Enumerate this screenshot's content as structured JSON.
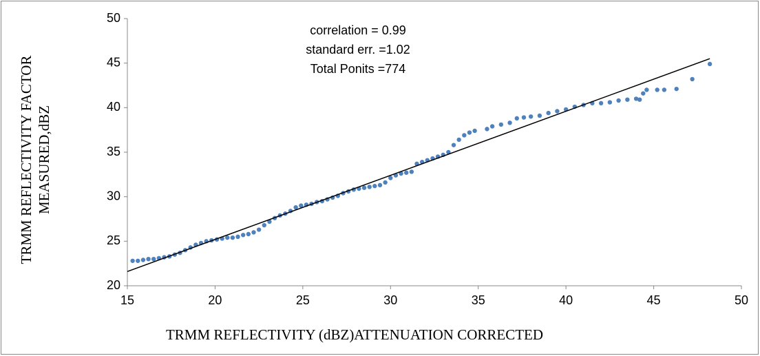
{
  "chart_data": {
    "type": "scatter",
    "annotations": [
      "correlation = 0.99",
      "standard err. =1.02",
      "Total Ponits =774"
    ],
    "xlabel": "TRMM  REFLECTIVITY (dBZ)ATTENUATION CORRECTED",
    "ylabel": [
      "TRMM REFLECTIVITY FACTOR",
      "MEASURED,dBZ"
    ],
    "xlim": [
      15,
      50
    ],
    "xticks": [
      15,
      20,
      25,
      30,
      35,
      40,
      45,
      50
    ],
    "ylim": [
      20,
      50
    ],
    "yticks": [
      20,
      25,
      30,
      35,
      40,
      45,
      50
    ],
    "series": [
      {
        "color": "#4f81bd",
        "x": [
          15.3,
          15.6,
          15.9,
          16.2,
          16.5,
          16.8,
          17.1,
          17.4,
          17.7,
          18.0,
          18.3,
          18.6,
          18.9,
          19.2,
          19.5,
          19.8,
          20.1,
          20.4,
          20.7,
          21.0,
          21.3,
          21.6,
          21.9,
          22.2,
          22.5,
          22.8,
          23.1,
          23.4,
          23.7,
          24.0,
          24.3,
          24.6,
          24.9,
          25.2,
          25.5,
          25.8,
          26.1,
          26.4,
          26.7,
          27.0,
          27.3,
          27.6,
          27.9,
          28.2,
          28.5,
          28.8,
          29.1,
          29.4,
          29.7,
          30.0,
          30.3,
          30.6,
          30.9,
          31.2,
          31.5,
          31.8,
          32.1,
          32.4,
          32.7,
          33.0,
          33.3,
          33.6,
          33.9,
          34.2,
          34.5,
          34.8,
          35.5,
          35.8,
          36.3,
          36.8,
          37.2,
          37.6,
          38.0,
          38.5,
          39.0,
          39.5,
          40.0,
          40.5,
          41.0,
          41.5,
          42.0,
          42.5,
          43.0,
          43.5,
          44.0,
          44.2,
          44.4,
          44.6,
          45.2,
          45.6,
          46.3,
          47.2,
          48.2
        ],
        "values": [
          22.8,
          22.8,
          22.9,
          23.0,
          23.0,
          23.1,
          23.2,
          23.3,
          23.5,
          23.7,
          24.0,
          24.3,
          24.6,
          24.8,
          25.0,
          25.1,
          25.2,
          25.3,
          25.4,
          25.4,
          25.5,
          25.7,
          25.8,
          26.0,
          26.3,
          26.8,
          27.2,
          27.6,
          27.9,
          28.1,
          28.4,
          28.8,
          29.0,
          29.1,
          29.2,
          29.4,
          29.5,
          29.7,
          29.9,
          30.1,
          30.4,
          30.6,
          30.8,
          30.9,
          31.0,
          31.1,
          31.2,
          31.3,
          31.6,
          32.1,
          32.4,
          32.6,
          32.7,
          32.8,
          33.7,
          33.9,
          34.1,
          34.3,
          34.5,
          34.7,
          35.0,
          35.8,
          36.4,
          36.9,
          37.2,
          37.4,
          37.6,
          37.9,
          38.1,
          38.3,
          38.8,
          38.9,
          39.0,
          39.1,
          39.4,
          39.6,
          39.8,
          40.1,
          40.3,
          40.5,
          40.5,
          40.6,
          40.8,
          40.9,
          41.0,
          40.9,
          41.6,
          42.0,
          42.0,
          42.0,
          42.1,
          43.2,
          44.9
        ]
      }
    ],
    "trendline": {
      "color": "#000000",
      "x": [
        15,
        48.2
      ],
      "y": [
        21.6,
        45.5
      ]
    }
  }
}
